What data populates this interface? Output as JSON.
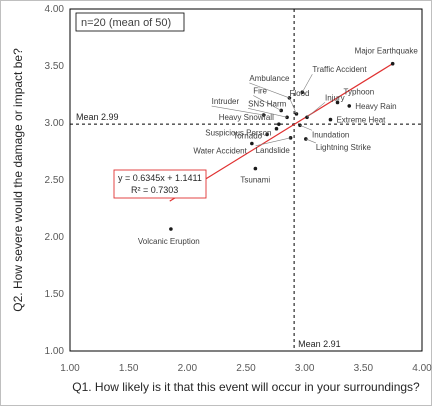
{
  "chart_data": {
    "type": "scatter",
    "xlabel": "Q1. How likely is it that this event will occur in your surroundings?",
    "ylabel": "Q2. How severe would the damage or impact be?",
    "xlim": [
      1.0,
      4.0
    ],
    "ylim": [
      1.0,
      4.0
    ],
    "xticks": [
      "1.00",
      "1.50",
      "2.00",
      "2.50",
      "3.00",
      "3.50",
      "4.00"
    ],
    "yticks": [
      "1.00",
      "1.50",
      "2.00",
      "2.50",
      "3.00",
      "3.50",
      "4.00"
    ],
    "sample_note": "n=20 (mean of 50)",
    "mean_x": {
      "value": 2.91,
      "label": "Mean 2.91"
    },
    "mean_y": {
      "value": 2.99,
      "label": "Mean 2.99"
    },
    "trendline": {
      "slope": 0.6345,
      "intercept": 1.1411,
      "x_range": [
        1.85,
        3.75
      ],
      "color": "#e03131"
    },
    "equation": "y = 0.6345x + 1.1411",
    "r_squared": "R² = 0.7303",
    "point_color": "#1a1a1a",
    "points": [
      {
        "name": "Major Earthquake",
        "x": 3.75,
        "y": 3.52
      },
      {
        "name": "Traffic Accident",
        "x": 2.98,
        "y": 3.27
      },
      {
        "name": "Ambulance",
        "x": 2.87,
        "y": 3.22
      },
      {
        "name": "Fire",
        "x": 2.8,
        "y": 3.11
      },
      {
        "name": "Flood",
        "x": 2.93,
        "y": 3.08
      },
      {
        "name": "Injury",
        "x": 3.02,
        "y": 3.05
      },
      {
        "name": "Typhoon",
        "x": 3.28,
        "y": 3.18
      },
      {
        "name": "Heavy Rain",
        "x": 3.38,
        "y": 3.15
      },
      {
        "name": "Extreme Heat",
        "x": 3.22,
        "y": 3.03
      },
      {
        "name": "SNS Harm",
        "x": 2.85,
        "y": 3.05
      },
      {
        "name": "Intruder",
        "x": 2.65,
        "y": 3.07
      },
      {
        "name": "Heavy Snowfall",
        "x": 2.78,
        "y": 2.99
      },
      {
        "name": "Suspicious Person",
        "x": 2.76,
        "y": 2.95
      },
      {
        "name": "Tornado",
        "x": 2.68,
        "y": 2.9
      },
      {
        "name": "Water Accident",
        "x": 2.55,
        "y": 2.82
      },
      {
        "name": "Inundation",
        "x": 2.96,
        "y": 2.98
      },
      {
        "name": "Lightning Strike",
        "x": 3.01,
        "y": 2.86
      },
      {
        "name": "Landslide",
        "x": 2.88,
        "y": 2.87
      },
      {
        "name": "Tsunami",
        "x": 2.58,
        "y": 2.6
      },
      {
        "name": "Volcanic Eruption",
        "x": 1.86,
        "y": 2.07
      }
    ]
  }
}
